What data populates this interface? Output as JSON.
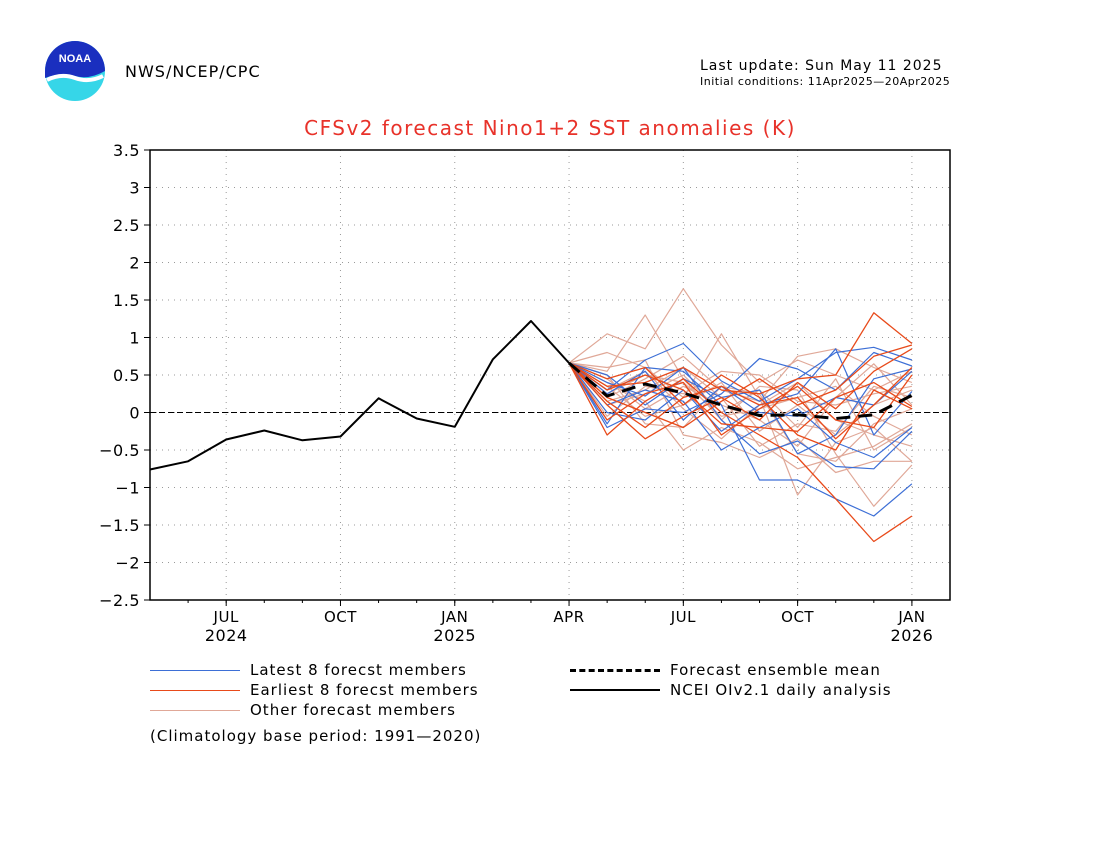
{
  "header": {
    "logo_text": "NOAA",
    "agency": "NWS/NCEP/CPC",
    "last_update": "Last update: Sun May 11 2025",
    "initial_conditions": "Initial conditions: 11Apr2025—20Apr2025"
  },
  "colors": {
    "title": "#e8322a",
    "latest": "#3d6fd6",
    "earliest": "#e84a1a",
    "other": "#e0a898",
    "mean": "#000000",
    "observed": "#000000",
    "grid": "#9a9a9a"
  },
  "legend": {
    "latest": "Latest 8 forecst members",
    "earliest": "Earliest 8 forecst members",
    "other": "Other forecast members",
    "mean": "Forecast ensemble mean",
    "observed": "NCEI OIv2.1 daily analysis"
  },
  "footnote": "(Climatology base period: 1991—2020)",
  "chart_data": {
    "type": "line",
    "title": "CFSv2 forecast Nino1+2 SST anomalies (K)",
    "xlabel": "",
    "ylabel": "",
    "months": [
      "2024-05",
      "2024-06",
      "2024-07",
      "2024-08",
      "2024-09",
      "2024-10",
      "2024-11",
      "2024-12",
      "2025-01",
      "2025-02",
      "2025-03",
      "2025-04",
      "2025-05",
      "2025-06",
      "2025-07",
      "2025-08",
      "2025-09",
      "2025-10",
      "2025-11",
      "2025-12",
      "2026-01"
    ],
    "xlim": [
      "2024-05",
      "2026-02"
    ],
    "ylim": [
      -2.5,
      3.5
    ],
    "yticks": [
      -2.5,
      -2,
      -1.5,
      -1,
      -0.5,
      0,
      0.5,
      1,
      1.5,
      2,
      2.5,
      3,
      3.5
    ],
    "ytick_labels": [
      "−2.5",
      "−2",
      "−1.5",
      "−1",
      "−0.5",
      "0",
      "0.5",
      "1",
      "1.5",
      "2",
      "2.5",
      "3",
      "3.5"
    ],
    "xticks": [
      {
        "month": "2024-07",
        "label": "JUL",
        "year": "2024"
      },
      {
        "month": "2024-10",
        "label": "OCT",
        "year": ""
      },
      {
        "month": "2025-01",
        "label": "JAN",
        "year": "2025"
      },
      {
        "month": "2025-04",
        "label": "APR",
        "year": ""
      },
      {
        "month": "2025-07",
        "label": "JUL",
        "year": ""
      },
      {
        "month": "2025-10",
        "label": "OCT",
        "year": ""
      },
      {
        "month": "2026-01",
        "label": "JAN",
        "year": "2026"
      }
    ],
    "grid": true,
    "zero_line": true,
    "observed": {
      "name": "NCEI OIv2.1 daily analysis",
      "x": [
        "2024-05",
        "2024-06",
        "2024-07",
        "2024-08",
        "2024-09",
        "2024-10",
        "2024-11",
        "2024-12",
        "2025-01",
        "2025-02",
        "2025-03",
        "2025-04"
      ],
      "y": [
        -0.76,
        -0.65,
        -0.36,
        -0.24,
        -0.37,
        -0.32,
        0.19,
        -0.08,
        -0.19,
        0.71,
        1.22,
        0.66
      ]
    },
    "forecast_x": [
      "2025-04",
      "2025-05",
      "2025-06",
      "2025-07",
      "2025-08",
      "2025-09",
      "2025-10",
      "2025-11",
      "2025-12",
      "2026-01"
    ],
    "ensemble_mean": {
      "name": "Forecast ensemble mean",
      "y": [
        0.66,
        0.22,
        0.38,
        0.26,
        0.1,
        -0.04,
        -0.03,
        -0.08,
        -0.03,
        0.23
      ]
    },
    "latest_members": [
      [
        0.66,
        -0.15,
        0.6,
        0.55,
        0.1,
        -0.9,
        -0.9,
        -1.15,
        -1.38,
        -0.95
      ],
      [
        0.66,
        0.3,
        0.7,
        0.92,
        0.42,
        0.15,
        0.45,
        0.8,
        0.87,
        0.7
      ],
      [
        0.66,
        -0.2,
        0.05,
        0.0,
        0.25,
        0.72,
        0.58,
        0.3,
        0.8,
        0.62
      ],
      [
        0.66,
        0.4,
        0.22,
        0.6,
        -0.1,
        -0.55,
        -0.38,
        -0.72,
        -0.75,
        -0.25
      ],
      [
        0.66,
        0.1,
        0.3,
        0.15,
        -0.5,
        -0.2,
        0.05,
        -0.4,
        -0.6,
        -0.2
      ],
      [
        0.66,
        0.25,
        0.55,
        -0.1,
        0.35,
        0.0,
        -0.05,
        0.2,
        0.1,
        0.55
      ],
      [
        0.66,
        0.5,
        0.1,
        0.45,
        0.2,
        0.3,
        -0.55,
        -0.3,
        0.45,
        0.58
      ],
      [
        0.66,
        0.0,
        -0.1,
        0.3,
        -0.25,
        0.1,
        0.25,
        0.85,
        -0.3,
        0.28
      ]
    ],
    "earliest_members": [
      [
        0.66,
        -0.3,
        0.15,
        0.45,
        0.0,
        -0.3,
        -0.6,
        -1.15,
        -1.72,
        -1.38
      ],
      [
        0.66,
        0.35,
        0.4,
        0.6,
        0.3,
        0.25,
        0.45,
        0.5,
        1.33,
        0.92
      ],
      [
        0.66,
        0.1,
        -0.35,
        -0.05,
        0.2,
        -0.1,
        0.4,
        0.05,
        0.55,
        0.85
      ],
      [
        0.66,
        0.45,
        0.6,
        0.1,
        0.5,
        0.2,
        -0.3,
        -0.5,
        0.3,
        0.05
      ],
      [
        0.66,
        -0.1,
        0.25,
        0.4,
        -0.3,
        0.05,
        0.35,
        -0.1,
        -0.2,
        0.5
      ],
      [
        0.66,
        0.2,
        0.0,
        -0.2,
        0.15,
        0.45,
        0.1,
        0.3,
        0.75,
        0.9
      ],
      [
        0.66,
        0.3,
        0.5,
        0.3,
        -0.15,
        -0.2,
        -0.25,
        0.2,
        0.4,
        0.08
      ],
      [
        0.66,
        0.15,
        -0.2,
        0.2,
        0.35,
        0.1,
        0.2,
        -0.35,
        0.1,
        0.6
      ]
    ],
    "other_members": [
      [
        0.66,
        1.05,
        0.85,
        1.65,
        0.9,
        0.4,
        0.7,
        0.5,
        0.3,
        0.55
      ],
      [
        0.66,
        0.8,
        0.6,
        0.2,
        1.05,
        0.2,
        -1.1,
        -0.4,
        -0.2,
        -0.65
      ],
      [
        0.66,
        0.55,
        1.3,
        0.45,
        -0.1,
        0.35,
        0.3,
        -0.55,
        -1.25,
        -0.7
      ],
      [
        0.66,
        0.4,
        0.15,
        -0.5,
        -0.2,
        -0.4,
        -0.75,
        -0.6,
        -0.45,
        -0.15
      ],
      [
        0.66,
        0.2,
        0.45,
        0.75,
        0.3,
        0.15,
        0.75,
        0.85,
        0.6,
        0.4
      ],
      [
        0.66,
        0.35,
        -0.05,
        0.1,
        0.4,
        -0.25,
        0.1,
        -0.3,
        0.1,
        0.3
      ],
      [
        0.66,
        0.1,
        0.25,
        0.5,
        0.0,
        0.3,
        -0.2,
        0.45,
        -0.5,
        -0.2
      ],
      [
        0.66,
        0.6,
        0.7,
        -0.3,
        -0.4,
        -0.6,
        -0.35,
        -0.8,
        -0.65,
        -0.65
      ],
      [
        0.66,
        -0.05,
        0.35,
        0.25,
        0.55,
        0.5,
        0.15,
        0.1,
        0.25,
        0.35
      ],
      [
        0.66,
        0.45,
        0.05,
        0.35,
        0.1,
        -0.1,
        -0.45,
        0.2,
        0.65,
        0.1
      ],
      [
        0.66,
        0.3,
        0.55,
        0.05,
        -0.35,
        0.1,
        0.4,
        -0.1,
        -0.3,
        -0.45
      ],
      [
        0.66,
        0.15,
        0.3,
        0.6,
        0.2,
        -0.45,
        -0.15,
        -0.25,
        0.35,
        0.2
      ],
      [
        0.66,
        0.5,
        -0.15,
        -0.2,
        0.35,
        0.25,
        -0.55,
        -0.65,
        -0.15,
        0.05
      ],
      [
        0.66,
        0.25,
        0.5,
        0.4,
        -0.05,
        0.05,
        0.2,
        0.35,
        -0.05,
        -0.3
      ]
    ]
  }
}
